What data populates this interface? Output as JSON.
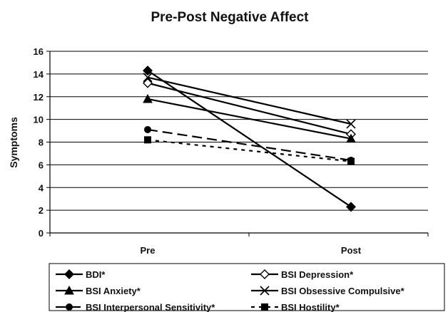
{
  "chart_data": {
    "type": "line",
    "title": "Pre-Post Negative Affect",
    "xlabel": "",
    "ylabel": "Symptoms",
    "categories": [
      "Pre",
      "Post"
    ],
    "ylim": [
      0,
      16
    ],
    "yticks": [
      "0",
      "2",
      "4",
      "6",
      "8",
      "10",
      "12",
      "14",
      "16"
    ],
    "grid": true,
    "legend_position": "bottom",
    "series": [
      {
        "name": "BDI*",
        "values": [
          14.3,
          2.3
        ],
        "marker": "diamond-filled",
        "dash": "solid",
        "color": "#000000"
      },
      {
        "name": "BSI Depression*",
        "values": [
          13.2,
          8.7
        ],
        "marker": "diamond-open",
        "dash": "solid",
        "color": "#000000"
      },
      {
        "name": "BSI Anxiety*",
        "values": [
          11.8,
          8.3
        ],
        "marker": "triangle",
        "dash": "solid",
        "color": "#000000"
      },
      {
        "name": "BSI Obsessive Compulsive*",
        "values": [
          13.7,
          9.6
        ],
        "marker": "x",
        "dash": "solid",
        "color": "#000000"
      },
      {
        "name": "BSI Interpersonal Sensitivity*",
        "values": [
          9.1,
          6.4
        ],
        "marker": "circle",
        "dash": "dashed",
        "color": "#000000"
      },
      {
        "name": "BSI Hostility*",
        "values": [
          8.2,
          6.3
        ],
        "marker": "square",
        "dash": "dotted",
        "color": "#000000"
      }
    ]
  }
}
